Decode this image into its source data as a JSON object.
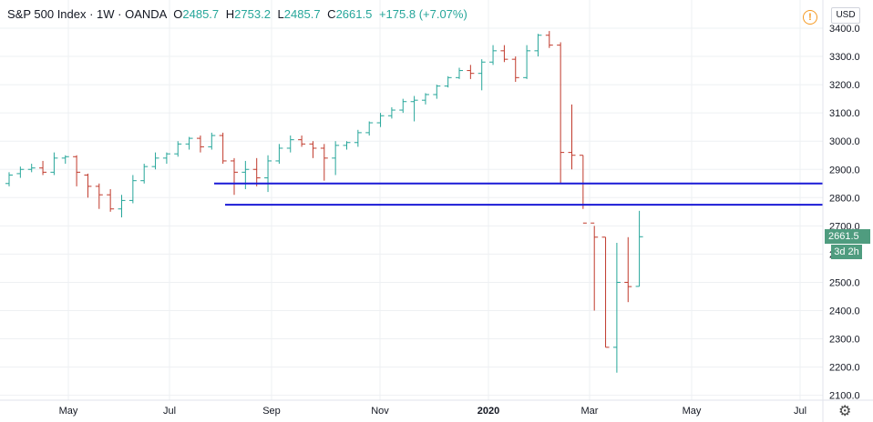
{
  "legend": {
    "title": "S&P 500 Index · 1W · OANDA",
    "open_label": "O",
    "open": "2485.7",
    "high_label": "H",
    "high": "2753.2",
    "low_label": "L",
    "low": "2485.7",
    "close_label": "C",
    "close": "2661.5",
    "change": "+175.8 (+7.07%)"
  },
  "currency": "USD",
  "last_price": "2661.5",
  "countdown": "3d 2h",
  "colors": {
    "up": "#26a69a",
    "down": "#c0392b",
    "hline": "#1a1ad6",
    "grid": "#eef0f3"
  },
  "chart_data": {
    "type": "ohlc",
    "y_ticks": [
      2100,
      2200,
      2300,
      2400,
      2500,
      2600,
      2700,
      2800,
      2900,
      3000,
      3100,
      3200,
      3300,
      3400
    ],
    "x_labels": [
      "May",
      "Jul",
      "Sep",
      "Nov",
      "2020",
      "Mar",
      "May",
      "Jul"
    ],
    "horizontal_lines": [
      2850,
      2775
    ],
    "bars": [
      [
        2850,
        2890,
        2840,
        2880
      ],
      [
        2885,
        2910,
        2870,
        2900
      ],
      [
        2900,
        2920,
        2890,
        2905
      ],
      [
        2905,
        2930,
        2880,
        2890
      ],
      [
        2890,
        2960,
        2880,
        2940
      ],
      [
        2940,
        2950,
        2920,
        2945
      ],
      [
        2945,
        2950,
        2840,
        2890
      ],
      [
        2880,
        2885,
        2800,
        2840
      ],
      [
        2840,
        2850,
        2760,
        2810
      ],
      [
        2810,
        2830,
        2750,
        2760
      ],
      [
        2760,
        2810,
        2730,
        2790
      ],
      [
        2790,
        2880,
        2780,
        2860
      ],
      [
        2860,
        2920,
        2850,
        2910
      ],
      [
        2910,
        2960,
        2900,
        2940
      ],
      [
        2940,
        2960,
        2920,
        2955
      ],
      [
        2955,
        3000,
        2945,
        2990
      ],
      [
        2990,
        3015,
        2970,
        3010
      ],
      [
        3010,
        3020,
        2960,
        2980
      ],
      [
        2980,
        3030,
        2970,
        3020
      ],
      [
        3020,
        3030,
        2920,
        2930
      ],
      [
        2930,
        2940,
        2810,
        2890
      ],
      [
        2890,
        2930,
        2830,
        2900
      ],
      [
        2900,
        2940,
        2840,
        2870
      ],
      [
        2870,
        2950,
        2820,
        2930
      ],
      [
        2930,
        2990,
        2920,
        2975
      ],
      [
        2975,
        3020,
        2960,
        3005
      ],
      [
        3005,
        3020,
        2980,
        2990
      ],
      [
        2990,
        3000,
        2940,
        2975
      ],
      [
        2975,
        2990,
        2860,
        2940
      ],
      [
        2940,
        3000,
        2880,
        2985
      ],
      [
        2985,
        3000,
        2970,
        2995
      ],
      [
        2995,
        3040,
        2980,
        3030
      ],
      [
        3030,
        3070,
        3020,
        3065
      ],
      [
        3065,
        3100,
        3050,
        3090
      ],
      [
        3090,
        3120,
        3080,
        3110
      ],
      [
        3110,
        3150,
        3100,
        3140
      ],
      [
        3140,
        3160,
        3070,
        3145
      ],
      [
        3145,
        3170,
        3130,
        3165
      ],
      [
        3165,
        3200,
        3150,
        3195
      ],
      [
        3195,
        3230,
        3190,
        3225
      ],
      [
        3225,
        3260,
        3220,
        3250
      ],
      [
        3250,
        3270,
        3220,
        3240
      ],
      [
        3240,
        3290,
        3180,
        3280
      ],
      [
        3280,
        3340,
        3270,
        3320
      ],
      [
        3320,
        3340,
        3280,
        3290
      ],
      [
        3290,
        3300,
        3210,
        3225
      ],
      [
        3225,
        3340,
        3220,
        3320
      ],
      [
        3320,
        3380,
        3300,
        3375
      ],
      [
        3375,
        3390,
        3330,
        3340
      ],
      [
        3340,
        3350,
        2850,
        2960
      ],
      [
        2960,
        3130,
        2900,
        2950
      ],
      [
        2950,
        2950,
        2760,
        2710
      ],
      [
        2710,
        2700,
        2400,
        2660
      ],
      [
        2660,
        2660,
        2270,
        2270
      ],
      [
        2270,
        2640,
        2180,
        2500
      ],
      [
        2500,
        2660,
        2430,
        2485
      ],
      [
        2485.7,
        2753.2,
        2485.7,
        2661.5
      ]
    ]
  }
}
